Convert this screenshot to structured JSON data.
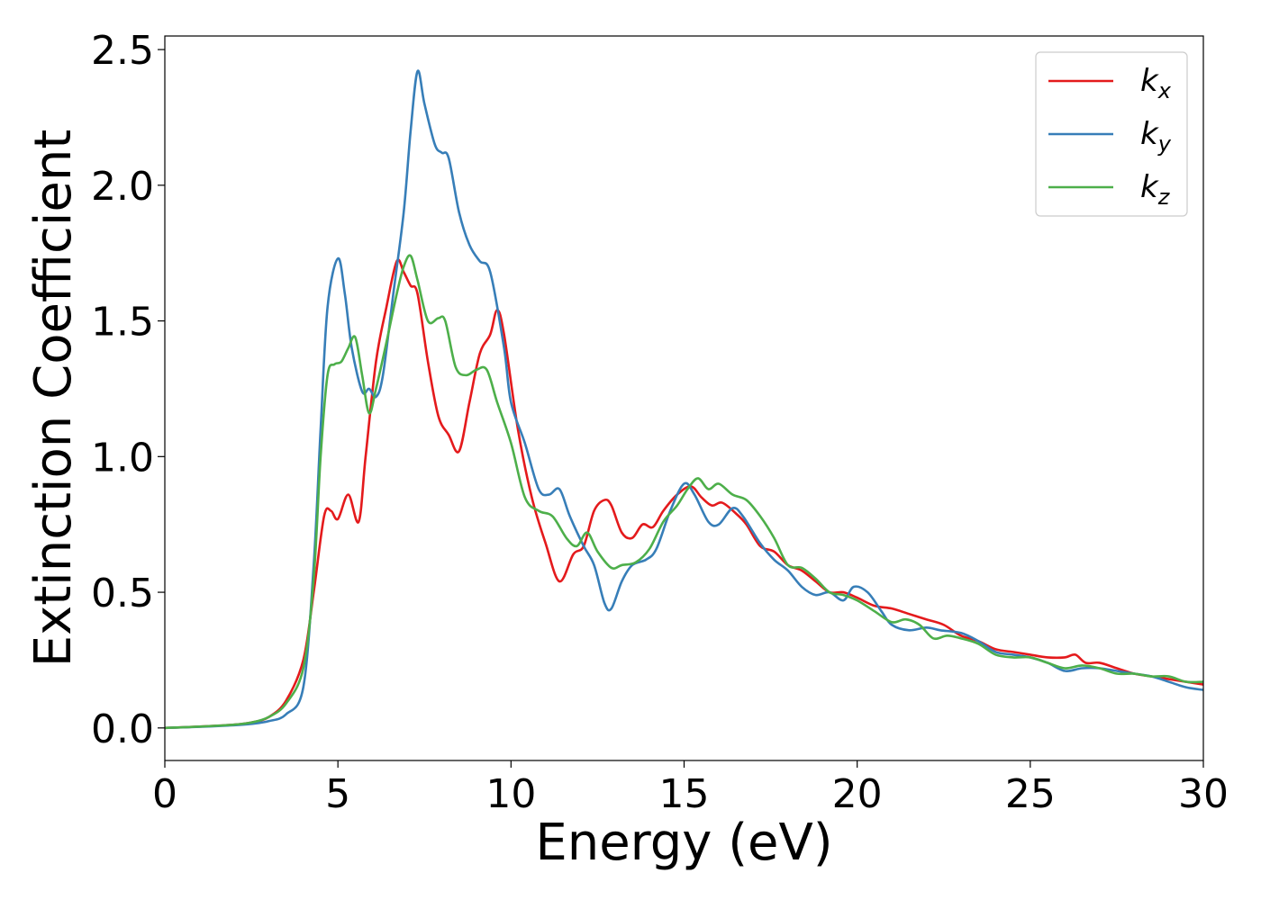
{
  "chart_data": {
    "type": "line",
    "xlabel": "Energy (eV)",
    "ylabel": "Extinction Coefficient",
    "xlim": [
      0,
      30
    ],
    "ylim": [
      -0.12,
      2.55
    ],
    "xticks": [
      0,
      5,
      10,
      15,
      20,
      25,
      30
    ],
    "yticks": [
      0.0,
      0.5,
      1.0,
      1.5,
      2.0,
      2.5
    ],
    "xtick_labels": [
      "0",
      "5",
      "10",
      "15",
      "20",
      "25",
      "30"
    ],
    "ytick_labels": [
      "0.0",
      "0.5",
      "1.0",
      "1.5",
      "2.0",
      "2.5"
    ],
    "grid": false,
    "legend_position": "top-right",
    "series": [
      {
        "name": "k_x",
        "label_base": "k",
        "label_sub": "x",
        "color": "#e41a1c",
        "points": [
          [
            0,
            0.0
          ],
          [
            1,
            0.005
          ],
          [
            2,
            0.012
          ],
          [
            2.5,
            0.02
          ],
          [
            3,
            0.04
          ],
          [
            3.5,
            0.1
          ],
          [
            4,
            0.25
          ],
          [
            4.3,
            0.5
          ],
          [
            4.6,
            0.78
          ],
          [
            4.8,
            0.8
          ],
          [
            5.0,
            0.77
          ],
          [
            5.3,
            0.86
          ],
          [
            5.6,
            0.76
          ],
          [
            5.8,
            1.0
          ],
          [
            6.1,
            1.35
          ],
          [
            6.4,
            1.55
          ],
          [
            6.7,
            1.72
          ],
          [
            6.9,
            1.68
          ],
          [
            7.1,
            1.63
          ],
          [
            7.3,
            1.6
          ],
          [
            7.6,
            1.35
          ],
          [
            7.9,
            1.15
          ],
          [
            8.2,
            1.08
          ],
          [
            8.5,
            1.02
          ],
          [
            8.8,
            1.2
          ],
          [
            9.1,
            1.38
          ],
          [
            9.4,
            1.45
          ],
          [
            9.6,
            1.54
          ],
          [
            9.8,
            1.45
          ],
          [
            10.2,
            1.1
          ],
          [
            10.6,
            0.85
          ],
          [
            11.0,
            0.68
          ],
          [
            11.4,
            0.54
          ],
          [
            11.8,
            0.64
          ],
          [
            12.1,
            0.67
          ],
          [
            12.4,
            0.8
          ],
          [
            12.7,
            0.84
          ],
          [
            12.9,
            0.82
          ],
          [
            13.2,
            0.72
          ],
          [
            13.5,
            0.7
          ],
          [
            13.8,
            0.75
          ],
          [
            14.1,
            0.74
          ],
          [
            14.4,
            0.8
          ],
          [
            14.8,
            0.86
          ],
          [
            15.2,
            0.89
          ],
          [
            15.5,
            0.85
          ],
          [
            15.8,
            0.82
          ],
          [
            16.1,
            0.83
          ],
          [
            16.5,
            0.79
          ],
          [
            16.8,
            0.75
          ],
          [
            17.2,
            0.67
          ],
          [
            17.6,
            0.65
          ],
          [
            18.0,
            0.6
          ],
          [
            18.4,
            0.58
          ],
          [
            18.8,
            0.54
          ],
          [
            19.2,
            0.5
          ],
          [
            19.6,
            0.5
          ],
          [
            20.0,
            0.48
          ],
          [
            20.5,
            0.45
          ],
          [
            21.0,
            0.44
          ],
          [
            21.5,
            0.42
          ],
          [
            22.0,
            0.4
          ],
          [
            22.5,
            0.38
          ],
          [
            23.0,
            0.34
          ],
          [
            23.5,
            0.32
          ],
          [
            24.0,
            0.29
          ],
          [
            24.5,
            0.28
          ],
          [
            25.0,
            0.27
          ],
          [
            25.5,
            0.26
          ],
          [
            26.0,
            0.26
          ],
          [
            26.3,
            0.27
          ],
          [
            26.6,
            0.24
          ],
          [
            27.0,
            0.24
          ],
          [
            27.5,
            0.22
          ],
          [
            28.0,
            0.2
          ],
          [
            28.5,
            0.19
          ],
          [
            29.0,
            0.18
          ],
          [
            29.5,
            0.17
          ],
          [
            30.0,
            0.16
          ]
        ]
      },
      {
        "name": "k_y",
        "label_base": "k",
        "label_sub": "y",
        "color": "#377eb8",
        "points": [
          [
            0,
            0.0
          ],
          [
            1,
            0.004
          ],
          [
            2,
            0.01
          ],
          [
            2.5,
            0.015
          ],
          [
            3,
            0.025
          ],
          [
            3.5,
            0.05
          ],
          [
            4,
            0.15
          ],
          [
            4.3,
            0.6
          ],
          [
            4.5,
            1.1
          ],
          [
            4.7,
            1.55
          ],
          [
            5.0,
            1.73
          ],
          [
            5.2,
            1.6
          ],
          [
            5.4,
            1.4
          ],
          [
            5.7,
            1.24
          ],
          [
            5.9,
            1.25
          ],
          [
            6.1,
            1.22
          ],
          [
            6.3,
            1.3
          ],
          [
            6.6,
            1.6
          ],
          [
            6.9,
            1.9
          ],
          [
            7.1,
            2.2
          ],
          [
            7.3,
            2.42
          ],
          [
            7.5,
            2.3
          ],
          [
            7.8,
            2.15
          ],
          [
            8.0,
            2.12
          ],
          [
            8.2,
            2.1
          ],
          [
            8.5,
            1.9
          ],
          [
            8.8,
            1.78
          ],
          [
            9.1,
            1.72
          ],
          [
            9.4,
            1.68
          ],
          [
            9.8,
            1.4
          ],
          [
            10.0,
            1.2
          ],
          [
            10.4,
            1.05
          ],
          [
            10.8,
            0.88
          ],
          [
            11.1,
            0.86
          ],
          [
            11.4,
            0.88
          ],
          [
            11.7,
            0.78
          ],
          [
            12.1,
            0.67
          ],
          [
            12.4,
            0.6
          ],
          [
            12.7,
            0.46
          ],
          [
            12.9,
            0.44
          ],
          [
            13.2,
            0.54
          ],
          [
            13.5,
            0.6
          ],
          [
            13.9,
            0.62
          ],
          [
            14.2,
            0.66
          ],
          [
            14.6,
            0.8
          ],
          [
            15.0,
            0.9
          ],
          [
            15.3,
            0.86
          ],
          [
            15.7,
            0.76
          ],
          [
            16.0,
            0.75
          ],
          [
            16.4,
            0.81
          ],
          [
            16.7,
            0.78
          ],
          [
            17.2,
            0.68
          ],
          [
            17.6,
            0.62
          ],
          [
            18.0,
            0.58
          ],
          [
            18.4,
            0.52
          ],
          [
            18.8,
            0.49
          ],
          [
            19.2,
            0.5
          ],
          [
            19.6,
            0.47
          ],
          [
            19.9,
            0.52
          ],
          [
            20.3,
            0.5
          ],
          [
            20.7,
            0.43
          ],
          [
            21.0,
            0.38
          ],
          [
            21.5,
            0.36
          ],
          [
            22.0,
            0.37
          ],
          [
            22.4,
            0.36
          ],
          [
            23.0,
            0.35
          ],
          [
            23.5,
            0.32
          ],
          [
            24.0,
            0.28
          ],
          [
            24.5,
            0.27
          ],
          [
            25.0,
            0.26
          ],
          [
            25.5,
            0.24
          ],
          [
            26.0,
            0.21
          ],
          [
            26.5,
            0.22
          ],
          [
            27.0,
            0.22
          ],
          [
            27.5,
            0.21
          ],
          [
            28.0,
            0.2
          ],
          [
            28.5,
            0.19
          ],
          [
            29.0,
            0.17
          ],
          [
            29.5,
            0.15
          ],
          [
            30.0,
            0.14
          ]
        ]
      },
      {
        "name": "k_z",
        "label_base": "k",
        "label_sub": "z",
        "color": "#4daf4a",
        "points": [
          [
            0,
            0.0
          ],
          [
            1,
            0.005
          ],
          [
            2,
            0.012
          ],
          [
            2.5,
            0.02
          ],
          [
            3,
            0.04
          ],
          [
            3.5,
            0.09
          ],
          [
            4,
            0.22
          ],
          [
            4.3,
            0.55
          ],
          [
            4.5,
            1.0
          ],
          [
            4.7,
            1.3
          ],
          [
            4.9,
            1.34
          ],
          [
            5.1,
            1.35
          ],
          [
            5.3,
            1.4
          ],
          [
            5.5,
            1.44
          ],
          [
            5.7,
            1.3
          ],
          [
            5.9,
            1.16
          ],
          [
            6.1,
            1.25
          ],
          [
            6.4,
            1.42
          ],
          [
            6.7,
            1.6
          ],
          [
            6.9,
            1.7
          ],
          [
            7.1,
            1.74
          ],
          [
            7.3,
            1.65
          ],
          [
            7.6,
            1.5
          ],
          [
            7.9,
            1.51
          ],
          [
            8.1,
            1.5
          ],
          [
            8.4,
            1.33
          ],
          [
            8.7,
            1.3
          ],
          [
            9.0,
            1.32
          ],
          [
            9.3,
            1.32
          ],
          [
            9.6,
            1.2
          ],
          [
            10.0,
            1.05
          ],
          [
            10.4,
            0.85
          ],
          [
            10.8,
            0.8
          ],
          [
            11.2,
            0.78
          ],
          [
            11.6,
            0.7
          ],
          [
            11.9,
            0.67
          ],
          [
            12.2,
            0.72
          ],
          [
            12.5,
            0.65
          ],
          [
            12.9,
            0.59
          ],
          [
            13.2,
            0.6
          ],
          [
            13.6,
            0.61
          ],
          [
            14.0,
            0.66
          ],
          [
            14.4,
            0.76
          ],
          [
            14.8,
            0.82
          ],
          [
            15.1,
            0.88
          ],
          [
            15.4,
            0.92
          ],
          [
            15.7,
            0.88
          ],
          [
            16.0,
            0.9
          ],
          [
            16.4,
            0.86
          ],
          [
            16.8,
            0.84
          ],
          [
            17.2,
            0.78
          ],
          [
            17.6,
            0.7
          ],
          [
            18.0,
            0.6
          ],
          [
            18.4,
            0.59
          ],
          [
            18.8,
            0.55
          ],
          [
            19.2,
            0.5
          ],
          [
            19.6,
            0.49
          ],
          [
            20.0,
            0.47
          ],
          [
            20.5,
            0.43
          ],
          [
            21.0,
            0.39
          ],
          [
            21.4,
            0.4
          ],
          [
            21.8,
            0.38
          ],
          [
            22.2,
            0.33
          ],
          [
            22.6,
            0.34
          ],
          [
            23.0,
            0.33
          ],
          [
            23.5,
            0.31
          ],
          [
            24.0,
            0.27
          ],
          [
            24.5,
            0.26
          ],
          [
            25.0,
            0.26
          ],
          [
            25.5,
            0.24
          ],
          [
            26.0,
            0.22
          ],
          [
            26.5,
            0.23
          ],
          [
            27.0,
            0.22
          ],
          [
            27.5,
            0.2
          ],
          [
            28.0,
            0.2
          ],
          [
            28.5,
            0.19
          ],
          [
            29.0,
            0.19
          ],
          [
            29.5,
            0.17
          ],
          [
            30.0,
            0.17
          ]
        ]
      }
    ]
  }
}
